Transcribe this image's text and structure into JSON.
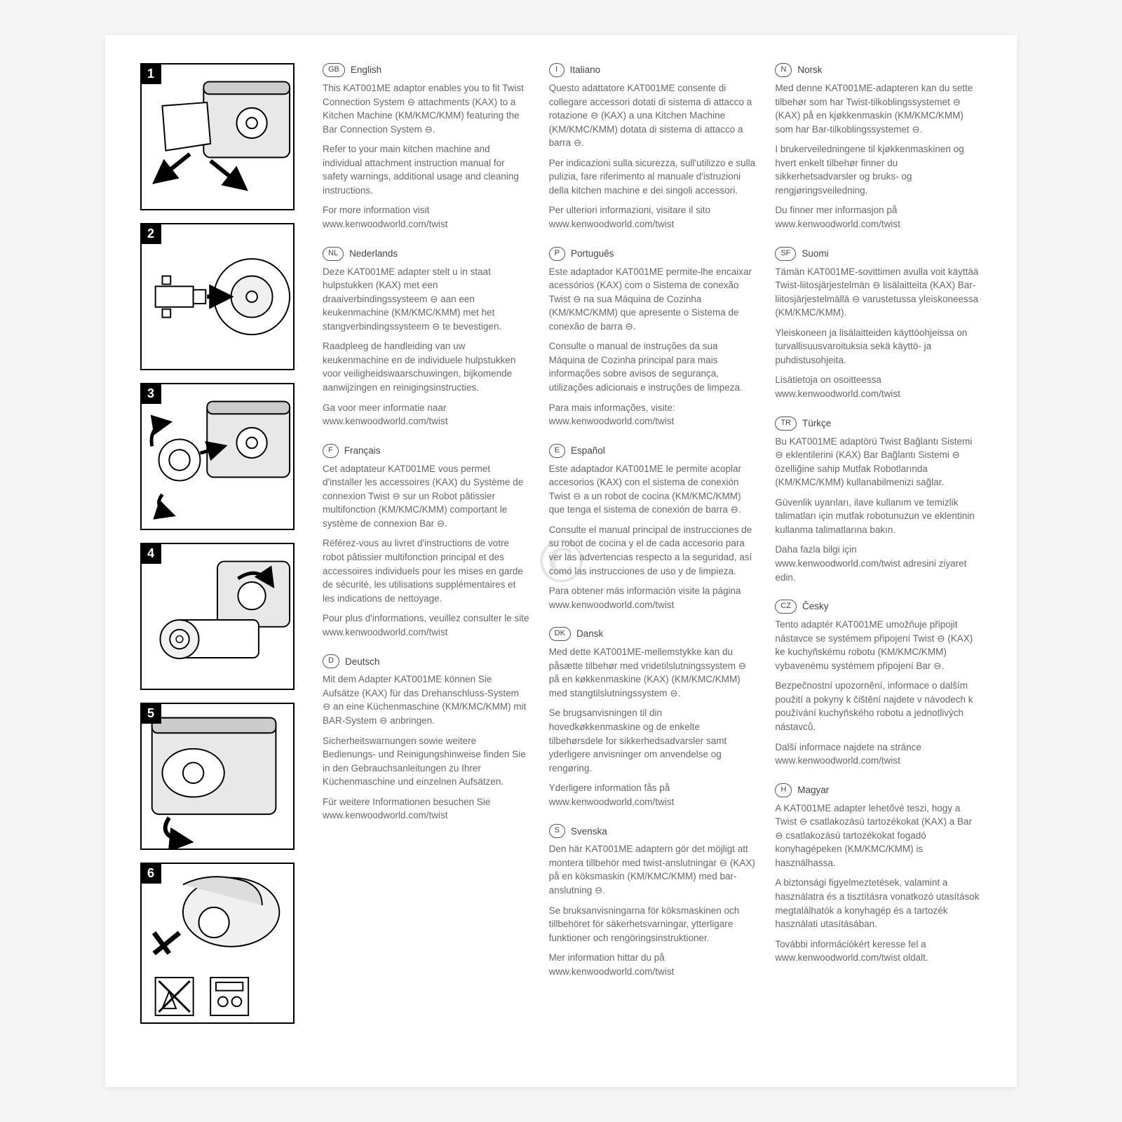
{
  "watermark": "©",
  "steps": [
    "1",
    "2",
    "3",
    "4",
    "5",
    "6"
  ],
  "languages": [
    {
      "code": "GB",
      "name": "English",
      "paragraphs": [
        "This KAT001ME adaptor enables you to fit Twist Connection System ⊖ attachments (KAX) to a Kitchen Machine (KM/KMC/KMM) featuring the Bar Connection System ⊖.",
        "Refer to your main kitchen machine and individual attachment instruction manual for safety warnings, additional usage and cleaning instructions.",
        "For more information visit www.kenwoodworld.com/twist"
      ]
    },
    {
      "code": "NL",
      "name": "Nederlands",
      "paragraphs": [
        "Deze KAT001ME adapter stelt u in staat hulpstukken (KAX) met een draaiverbindingssysteem ⊖ aan een keukenmachine (KM/KMC/KMM) met het stangverbindingssysteem ⊖ te bevestigen.",
        "Raadpleeg de handleiding van uw keukenmachine en de individuele hulpstukken voor veiligheidswaarschuwingen, bijkomende aanwijzingen en reinigingsinstructies.",
        "Ga voor meer informatie naar www.kenwoodworld.com/twist"
      ]
    },
    {
      "code": "F",
      "name": "Français",
      "paragraphs": [
        "Cet adaptateur KAT001ME vous permet d'installer les accessoires (KAX) du Système de connexion Twist ⊖ sur un Robot pâtissier multifonction (KM/KMC/KMM) comportant le système de connexion Bar ⊖.",
        "Référez-vous au livret d'instructions de votre robot pâtissier multifonction principal et des accessoires individuels pour les mises en garde de sécurité, les utilisations supplémentaires et les indications de nettoyage.",
        "Pour plus d'informations, veuillez consulter le site www.kenwoodworld.com/twist"
      ]
    },
    {
      "code": "D",
      "name": "Deutsch",
      "paragraphs": [
        "Mit dem Adapter KAT001ME können Sie Aufsätze (KAX) für das Drehanschluss-System ⊖ an eine Küchenmaschine (KM/KMC/KMM) mit BAR-System ⊖ anbringen.",
        "Sicherheitswarnungen sowie weitere Bedienungs- und Reinigungshinweise finden Sie in den Gebrauchsanleitungen zu Ihrer Küchenmaschine und einzelnen Aufsätzen.",
        "Für weitere Informationen besuchen Sie www.kenwoodworld.com/twist"
      ]
    },
    {
      "code": "I",
      "name": "Italiano",
      "paragraphs": [
        "Questo adattatore KAT001ME consente di collegare accessori dotati di sistema di attacco a rotazione ⊖ (KAX) a una Kitchen Machine (KM/KMC/KMM) dotata di sistema di attacco a barra ⊖.",
        "Per indicazioni sulla sicurezza, sull'utilizzo e sulla pulizia, fare riferimento al manuale d'istruzioni della kitchen machine e dei singoli accessori.",
        "Per ulteriori informazioni, visitare il sito www.kenwoodworld.com/twist"
      ]
    },
    {
      "code": "P",
      "name": "Português",
      "paragraphs": [
        "Este adaptador KAT001ME permite-lhe encaixar acessórios (KAX) com o Sistema de conexão Twist ⊖ na sua Máquina de Cozinha (KM/KMC/KMM) que apresente o Sistema de conexão de barra ⊖.",
        "Consulte o manual de instruções da sua Máquina de Cozinha principal para mais informações sobre avisos de segurança, utilizações adicionais e instruções de limpeza.",
        "Para mais informações, visite: www.kenwoodworld.com/twist"
      ]
    },
    {
      "code": "E",
      "name": "Español",
      "paragraphs": [
        "Este adaptador KAT001ME le permite acoplar accesorios (KAX) con el sistema de conexión Twist ⊖ a un robot de cocina (KM/KMC/KMM) que tenga el sistema de conexión de barra ⊖.",
        "Consulte el manual principal de instrucciones de su robot de cocina y el de cada accesorio para ver las advertencias respecto a la seguridad, así como las instrucciones de uso y de limpieza.",
        "Para obtener más información visite la página www.kenwoodworld.com/twist"
      ]
    },
    {
      "code": "DK",
      "name": "Dansk",
      "paragraphs": [
        "Med dette KAT001ME-mellemstykke kan du påsætte tilbehør med vridetilslutningssystem ⊖ på en køkkenmaskine (KAX) (KM/KMC/KMM) med stangtilslutningssystem ⊖.",
        "Se brugsanvisningen til din hovedkøkkenmaskine og de enkelte tilbehørsdele for sikkerhedsadvarsler samt yderligere anvisninger om anvendelse og rengøring.",
        "Yderligere information fås på www.kenwoodworld.com/twist"
      ]
    },
    {
      "code": "S",
      "name": "Svenska",
      "paragraphs": [
        "Den här KAT001ME adaptern gör det möjligt att montera tillbehör med twist-anslutningar ⊖ (KAX) på en köksmaskin (KM/KMC/KMM) med bar-anslutning ⊖.",
        "Se bruksanvisningarna för köksmaskinen och tillbehöret för säkerhetsvarningar, ytterligare funktioner och rengöringsinstruktioner.",
        "Mer information hittar du på www.kenwoodworld.com/twist"
      ]
    },
    {
      "code": "N",
      "name": "Norsk",
      "paragraphs": [
        "Med denne KAT001ME-adapteren kan du sette tilbehør som har Twist-tilkoblingssystemet ⊖ (KAX) på en kjøkkenmaskin (KM/KMC/KMM) som har Bar-tilkoblingssystemet ⊖.",
        "I brukerveiledningene til kjøkkenmaskinen og hvert enkelt tilbehør finner du sikkerhetsadvarsler og bruks- og rengjøringsveiledning.",
        "Du finner mer informasjon på www.kenwoodworld.com/twist"
      ]
    },
    {
      "code": "SF",
      "name": "Suomi",
      "paragraphs": [
        "Tämän KAT001ME-sovittimen avulla voit käyttää Twist-liitosjärjestelmän ⊖ lisälaitteita (KAX) Bar-liitosjärjestelmällä ⊖ varustetussa yleiskoneessa (KM/KMC/KMM).",
        "Yleiskoneen ja lisälaitteiden käyttöohjeissa on turvallisuusvaroituksia sekä käyttö- ja puhdistusohjeita.",
        "Lisätietoja on osoitteessa www.kenwoodworld.com/twist"
      ]
    },
    {
      "code": "TR",
      "name": "Türkçe",
      "paragraphs": [
        "Bu KAT001ME adaptörü Twist Bağlantı Sistemi ⊖ eklentilerini (KAX) Bar Bağlantı Sistemi ⊖ özelliğine sahip Mutfak Robotlarında (KM/KMC/KMM) kullanabilmenizi sağlar.",
        "Güvenlik uyarıları, ilave kullanım ve temizlik talimatları için mutfak robotunuzun ve eklentinin kullanma talimatlarına bakın.",
        "Daha fazla bilgi için www.kenwoodworld.com/twist adresini ziyaret edin."
      ]
    },
    {
      "code": "CZ",
      "name": "Česky",
      "paragraphs": [
        "Tento adaptér KAT001ME umožňuje připojit nástavce se systémem připojení Twist ⊖ (KAX) ke kuchyňskému robotu (KM/KMC/KMM) vybavenému systémem připojení Bar ⊖.",
        "Bezpečnostní upozornění, informace o dalším použití a pokyny k čištění najdete v návodech k používání kuchyňského robotu a jednotlivých nástavců.",
        "Další informace najdete na stránce www.kenwoodworld.com/twist"
      ]
    },
    {
      "code": "H",
      "name": "Magyar",
      "paragraphs": [
        "A KAT001ME adapter lehetővé teszi, hogy a Twist ⊖ csatlakozású tartozékokat (KAX) a Bar ⊖ csatlakozású tartozékokat fogadó konyhagépeken (KM/KMC/KMM) is használhassa.",
        "A biztonsági figyelmeztetések, valamint a használatra és a tisztításra vonatkozó utasítások megtalálhatók a konyhagép és a tartozék használati utasításában.",
        "További információkért keresse fel a www.kenwoodworld.com/twist oldalt."
      ]
    }
  ]
}
